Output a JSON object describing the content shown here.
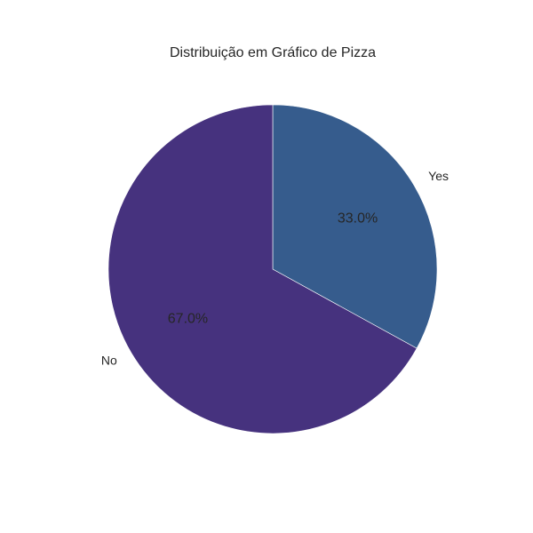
{
  "chart_data": {
    "type": "pie",
    "title": "Distribuição em Gráfico de Pizza",
    "categories": [
      "Yes",
      "No"
    ],
    "values": [
      33.0,
      67.0
    ],
    "value_labels": [
      "33.0%",
      "67.0%"
    ],
    "colors": [
      "#365c8d",
      "#46327e"
    ],
    "start_angle_deg": 90,
    "direction": "clockwise",
    "legend": "none"
  }
}
